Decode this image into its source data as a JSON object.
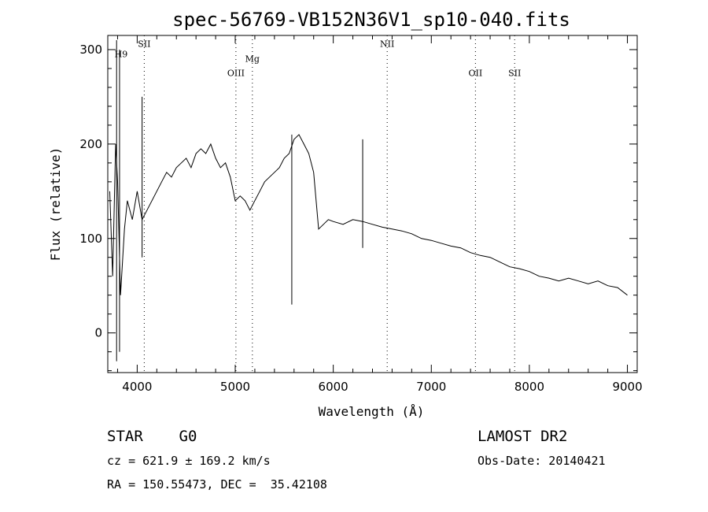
{
  "chart_data": {
    "type": "line",
    "title": "spec-56769-VB152N36V1_sp10-040.fits",
    "xlabel": "Wavelength (Å)",
    "ylabel": "Flux (relative)",
    "xlim": [
      3700,
      9100
    ],
    "ylim": [
      -42,
      315
    ],
    "xticks": [
      4000,
      5000,
      6000,
      7000,
      8000,
      9000
    ],
    "yticks": [
      0,
      100,
      200,
      300
    ],
    "grid": false,
    "series": [
      {
        "x": [
          3720,
          3750,
          3780,
          3800,
          3830,
          3870,
          3900,
          3950,
          4000,
          4050,
          4100,
          4150,
          4200,
          4250,
          4300,
          4350,
          4400,
          4450,
          4500,
          4550,
          4600,
          4650,
          4700,
          4750,
          4800,
          4850,
          4900,
          4950,
          5000,
          5050,
          5100,
          5150,
          5200,
          5250,
          5300,
          5350,
          5400,
          5450,
          5500,
          5550,
          5600,
          5650,
          5700,
          5750,
          5800,
          5850,
          5900,
          5950,
          6000,
          6100,
          6200,
          6300,
          6400,
          6500,
          6600,
          6700,
          6800,
          6900,
          7000,
          7100,
          7200,
          7300,
          7400,
          7500,
          7600,
          7700,
          7800,
          7900,
          8000,
          8100,
          8200,
          8300,
          8400,
          8500,
          8600,
          8700,
          8800,
          8900,
          9000
        ],
        "values": [
          150,
          60,
          200,
          160,
          40,
          110,
          140,
          120,
          150,
          120,
          130,
          140,
          150,
          160,
          170,
          165,
          175,
          180,
          185,
          175,
          190,
          195,
          190,
          200,
          185,
          175,
          180,
          165,
          140,
          145,
          140,
          130,
          140,
          150,
          160,
          165,
          170,
          175,
          185,
          190,
          205,
          210,
          200,
          190,
          170,
          110,
          115,
          120,
          118,
          115,
          120,
          118,
          115,
          112,
          110,
          108,
          105,
          100,
          98,
          95,
          92,
          90,
          85,
          82,
          80,
          75,
          70,
          68,
          65,
          60,
          58,
          55,
          58,
          55,
          52,
          55,
          50,
          48,
          40
        ]
      }
    ],
    "spikes": [
      {
        "x": 3790,
        "values": [
          -30,
          310
        ]
      },
      {
        "x": 3820,
        "values": [
          -20,
          300
        ]
      },
      {
        "x": 4050,
        "values": [
          80,
          250
        ]
      },
      {
        "x": 5577,
        "values": [
          30,
          210
        ]
      },
      {
        "x": 6300,
        "values": [
          90,
          205
        ]
      }
    ],
    "annotations": [
      {
        "label": "H9",
        "x": 3836,
        "y": 292
      },
      {
        "label": "SII",
        "x": 4072,
        "y": 303
      },
      {
        "label": "OIII",
        "x": 5007,
        "y": 272
      },
      {
        "label": "Mg",
        "x": 5175,
        "y": 287
      },
      {
        "label": "NII",
        "x": 6550,
        "y": 303
      },
      {
        "label": "OII",
        "x": 7450,
        "y": 272
      },
      {
        "label": "SII",
        "x": 7850,
        "y": 272
      }
    ],
    "marker_lines": [
      4072,
      5007,
      5175,
      6550,
      7450,
      7850
    ]
  },
  "info": {
    "object_type": "STAR    G0",
    "survey": "LAMOST DR2",
    "cz": "cz = 621.9 ± 169.2 km/s",
    "obs_date": "Obs-Date: 20140421",
    "radec": "RA = 150.55473, DEC =  35.42108"
  }
}
